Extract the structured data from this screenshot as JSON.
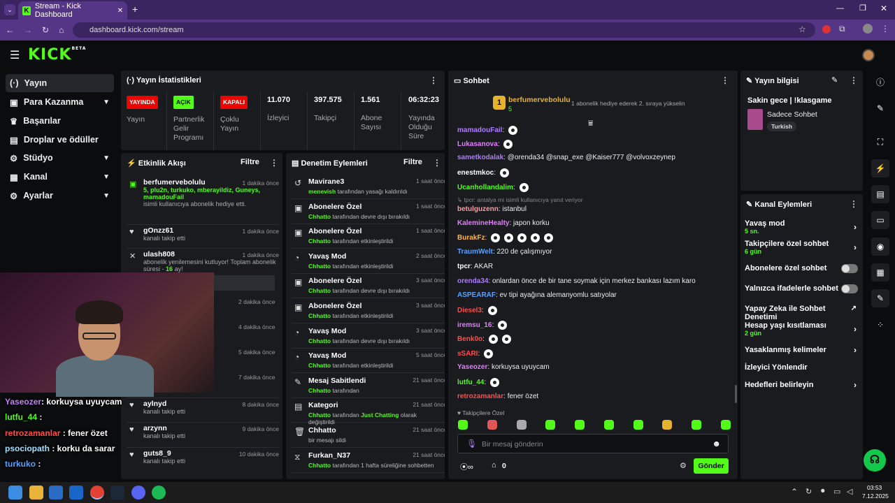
{
  "browser": {
    "tab_title": "Stream - Kick Dashboard",
    "url": "dashboard.kick.com/stream"
  },
  "header": {
    "logo": "KICK",
    "logo_sup": "BETA"
  },
  "sidebar": {
    "items": [
      {
        "label": "Yayın",
        "icon": "(·)"
      },
      {
        "label": "Para Kazanma",
        "icon": "▣"
      },
      {
        "label": "Başarılar",
        "icon": "♛"
      },
      {
        "label": "Droplar ve ödüller",
        "icon": "▤"
      },
      {
        "label": "Stüdyo",
        "icon": "⚙"
      },
      {
        "label": "Kanal",
        "icon": "▦"
      },
      {
        "label": "Ayarlar",
        "icon": "⚙"
      }
    ]
  },
  "stats": {
    "title": "Yayın İstatistikleri",
    "live": {
      "badge": "YAYINDA",
      "label": "Yayın"
    },
    "partner": {
      "badge": "AÇIK",
      "label": "Partnerlik Gelir Programı"
    },
    "multi": {
      "badge": "KAPALI",
      "label": "Çoklu Yayın"
    },
    "viewers": {
      "value": "11.070",
      "label": "İzleyici"
    },
    "followers": {
      "value": "397.575",
      "label": "Takipçi"
    },
    "subs": {
      "value": "1.561",
      "label": "Abone Sayısı"
    },
    "uptime": {
      "value": "06:32:23",
      "label": "Yayında Olduğu Süre"
    }
  },
  "activity": {
    "title": "Etkinlik Akışı",
    "filter": "Filtre",
    "events": [
      {
        "name": "berfumervebolulu",
        "detail": "5, plu2n, turkuko, mberayildiz, Guneys, mamadouFail",
        "detail2": "isimli kullanıcıya abonelik hediye etti.",
        "time": "1 dakika önce"
      },
      {
        "name": "gOnzz61",
        "detail": "kanalı takip etti",
        "time": "1 dakika önce"
      },
      {
        "name": "ulash808",
        "detail": "abonelik yenilemesini kutluyor! Toplam abonelik süresi -",
        "months": "16",
        "detail_end": "ay!",
        "time": "1 dakika önce"
      },
      {
        "name": "",
        "detail": "",
        "time": "2 dakika önce"
      },
      {
        "name": "",
        "detail": "",
        "time": "4 dakika önce"
      },
      {
        "name": "",
        "detail": "",
        "time": "5 dakika önce"
      },
      {
        "name": "",
        "detail": "",
        "time": "7 dakika önce"
      },
      {
        "name": "aylnyd",
        "detail": "kanalı takip etti",
        "time": "8 dakika önce"
      },
      {
        "name": "arzynn",
        "detail": "kanalı takip etti",
        "time": "9 dakika önce"
      },
      {
        "name": "guts8_9",
        "detail": "kanalı takip etti",
        "time": "10 dakika önce"
      }
    ]
  },
  "moderation": {
    "title": "Denetim Eylemleri",
    "filter": "Filtre",
    "items": [
      {
        "name": "Mavirane3",
        "by": "menevish",
        "action": "tarafından yasağı kaldırıldı",
        "time": "1 saat önce",
        "icon": "↺"
      },
      {
        "name": "Abonelere Özel",
        "by": "Chhatto",
        "action": "tarafından devre dışı bırakıldı",
        "time": "1 saat önce",
        "icon": "▣"
      },
      {
        "name": "Abonelere Özel",
        "by": "Chhatto",
        "action": "tarafından etkinleştirildi",
        "time": "1 saat önce",
        "icon": "▣"
      },
      {
        "name": "Yavaş Mod",
        "by": "Chhatto",
        "action": "tarafından etkinleştirildi",
        "time": "2 saat önce",
        "icon": "◔"
      },
      {
        "name": "Abonelere Özel",
        "by": "Chhatto",
        "action": "tarafından devre dışı bırakıldı",
        "time": "3 saat önce",
        "icon": "▣"
      },
      {
        "name": "Abonelere Özel",
        "by": "Chhatto",
        "action": "tarafından etkinleştirildi",
        "time": "3 saat önce",
        "icon": "▣"
      },
      {
        "name": "Yavaş Mod",
        "by": "Chhatto",
        "action": "tarafından devre dışı bırakıldı",
        "time": "3 saat önce",
        "icon": "◔"
      },
      {
        "name": "Yavaş Mod",
        "by": "Chhatto",
        "action": "tarafından etkinleştirildi",
        "time": "5 saat önce",
        "icon": "◔"
      },
      {
        "name": "Mesaj Sabitlendi",
        "by": "Chhatto",
        "action": "tarafından",
        "time": "21 saat önce",
        "icon": "✎"
      },
      {
        "name": "Kategori",
        "by": "Chhatto",
        "action": "tarafından",
        "action_g": "Just Chatting",
        "action2": "olarak",
        "action3": "değiştirildi",
        "time": "21 saat önce",
        "icon": "▤"
      },
      {
        "name": "Chhatto",
        "by": "",
        "action": "bir mesajı sildi",
        "time": "21 saat önce",
        "icon": "🗑"
      },
      {
        "name": "Furkan_N37",
        "by": "Chhatto",
        "action": "tarafından 1 hafta süreliğine sohbetten",
        "time": "21 saat önce",
        "icon": "⧖"
      }
    ]
  },
  "chat": {
    "title": "Sohbet",
    "pinned": {
      "user": "berfumervebolulu",
      "count": "5",
      "note": "1 abonelik hediye ederek 2. sıraya yükselin",
      "rank": "1"
    },
    "messages": [
      {
        "user": "mamadouFail",
        "color": "#b07cff",
        "text": ""
      },
      {
        "user": "Lukasanova",
        "color": "#e37cff",
        "text": ""
      },
      {
        "user": "sametkodalak",
        "color": "#b07cff",
        "text": "@orenda34 @snap_exe @Kaiser777 @volvoxzeynep"
      },
      {
        "user": "enestmkoc",
        "color": "#ffffff",
        "text": ""
      },
      {
        "user": "Ucanhollandalim",
        "color": "#53fc18",
        "text": ""
      },
      {
        "reply": "tpcr: antalya mi isimli kullanıcıya yanıt veriyor"
      },
      {
        "user": "betulguzenn",
        "color": "#ff9aa2",
        "text": "istanbul"
      },
      {
        "user": "KalemineHealty",
        "color": "#e37cff",
        "text": "japon korku"
      },
      {
        "user": "BurakFz",
        "color": "#ffb84d",
        "text": ""
      },
      {
        "user": "TraumWelt",
        "color": "#5aa0ff",
        "text": "220 de çalışmıyor"
      },
      {
        "user": "tpcr",
        "color": "#ffffff",
        "text": "AKAR"
      },
      {
        "user": "orenda34",
        "color": "#b07cff",
        "text": "onlardan önce de bir tane soymak için merkez bankası lazım karo"
      },
      {
        "user": "ASPEARAF",
        "color": "#5aa0ff",
        "text": "ev tipi ayağına alemanyomlu satıyolar"
      },
      {
        "user": "Diesel3",
        "color": "#ff4d4d",
        "text": ""
      },
      {
        "user": "iremsu_16",
        "color": "#e37cff",
        "text": ""
      },
      {
        "user": "Benk0o",
        "color": "#ff4d4d",
        "text": ""
      },
      {
        "user": "sSARI",
        "color": "#ff4d4d",
        "text": ""
      },
      {
        "user": "Yaseozer",
        "color": "#e37cff",
        "text": "korkuysa uyuycam"
      },
      {
        "user": "lutfu_44",
        "color": "#53fc18",
        "text": ""
      },
      {
        "user": "retrozamanlar",
        "color": "#ff4d4d",
        "text": "fener özet"
      }
    ],
    "followers_only": "Takipçilere Özel",
    "placeholder": "Bir mesaj gönderin",
    "send": "Gönder",
    "points": "0"
  },
  "stream_info": {
    "title": "Yayın bilgisi",
    "stream_title": "Sakin gece | !klasgame",
    "category": "Sadece Sohbet",
    "tag": "Turkish"
  },
  "channel_actions": {
    "title": "Kanal Eylemleri",
    "items": [
      {
        "label": "Yavaş mod",
        "sub": "5 sn."
      },
      {
        "label": "Takipçilere özel sohbet",
        "sub": "6 gün"
      },
      {
        "label": "Abonelere özel sohbet"
      },
      {
        "label": "Yalnızca ifadelerle sohbet"
      },
      {
        "label": "Yapay Zeka ile Sohbet Denetimi"
      },
      {
        "label": "Hesap yaşı kısıtlaması",
        "sub": "2 gün"
      },
      {
        "label": "Yasaklanmış kelimeler"
      },
      {
        "label": "İzleyici Yönlendir"
      },
      {
        "label": "Hedefleri belirleyin"
      }
    ]
  },
  "overlay": {
    "lines": [
      {
        "user": "Yaseozer",
        "text": ": korkuysa uyuycam",
        "color": "#c77dff"
      },
      {
        "user": "lutfu_44",
        "text": " :",
        "color": "#53fc18"
      },
      {
        "user": "retrozamanlar",
        "text": " : fener özet",
        "color": "#ff4d4d"
      },
      {
        "user": "psociopath",
        "text": " : korku da sarar",
        "color": "#a0e0ff"
      },
      {
        "user": "turkuko",
        "text": " :",
        "color": "#5aa0ff"
      }
    ]
  },
  "taskbar": {
    "time": "03:53",
    "date": "7.12.2025"
  },
  "colors": {
    "accent": "#53fc18",
    "live": "#eb0400",
    "panel": "#191b1f"
  }
}
